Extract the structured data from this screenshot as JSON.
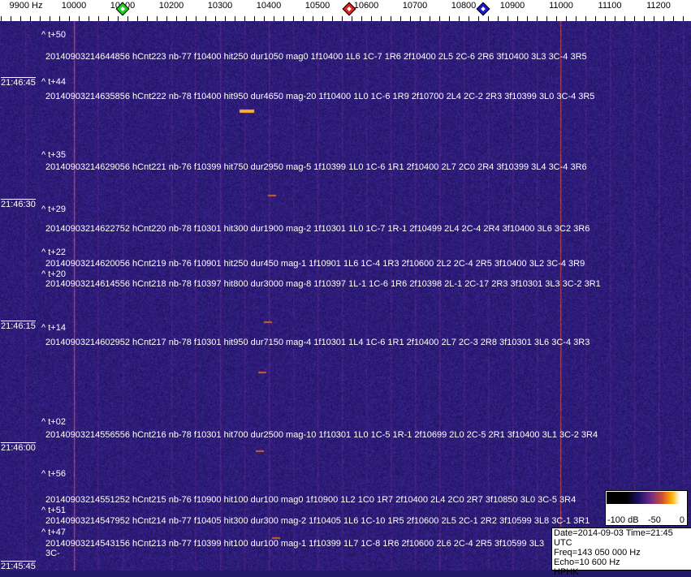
{
  "ruler": {
    "unit_label": "9900 Hz",
    "ticks": [
      "10000",
      "10100",
      "10200",
      "10300",
      "10400",
      "10500",
      "10600",
      "10700",
      "10800",
      "10900",
      "11000",
      "11100",
      "11200"
    ],
    "markers": [
      {
        "name": "green",
        "freq_hz": 10100,
        "color": "#22cc22"
      },
      {
        "name": "red",
        "freq_hz": 10565,
        "color": "#dd2222"
      },
      {
        "name": "blue",
        "freq_hz": 10840,
        "color": "#1a1acc"
      }
    ]
  },
  "waterfall": {
    "background_color": "#24186a",
    "strong_lines_hz": [
      10000,
      11000
    ],
    "time_labels": [
      {
        "text": "21:46:45"
      },
      {
        "text": "21:46:30"
      },
      {
        "text": "21:46:15"
      },
      {
        "text": "21:46:00"
      },
      {
        "text": "21:45:45"
      }
    ],
    "offset_labels": [
      "^ t+50",
      "^ t+44",
      "^ t+35",
      "^ t+29",
      "^ t+22",
      "^ t+20",
      "^ t+14",
      "^ t+02",
      "^ t+56",
      "^ t+51",
      "^ t+47"
    ],
    "detections": [
      "20140903214644856 hCnt223 nb-77 f10400 hit250 dur1050 mag0 1f10400 1L6 1C-7 1R6 2f10400 2L5 2C-6 2R6 3f10400 3L3 3C-4 3R5",
      "20140903214635856 hCnt222 nb-78 f10400 hit950 dur4650 mag-20 1f10400 1L0 1C-6 1R9 2f10700 2L4 2C-2 2R3 3f10399 3L0 3C-4 3R5",
      "20140903214629056 hCnt221 nb-76 f10399 hit750 dur2950 mag-5 1f10399 1L0 1C-6 1R1 2f10400 2L7 2C0 2R4 3f10399 3L4 3C-4 3R6",
      "20140903214622752 hCnt220 nb-78 f10301 hit300 dur1900 mag-2 1f10301 1L0 1C-7 1R-1 2f10499 2L4 2C-4 2R4 3f10400 3L6 3C2 3R6",
      "20140903214620056 hCnt219 nb-76 f10901 hit250 dur450 mag-1 1f10901 1L6 1C-4 1R3 2f10600 2L2 2C-4 2R5 3f10400 3L2 3C-4 3R9",
      "20140903214614556 hCnt218 nb-78 f10397 hit800 dur3000 mag-8 1f10397 1L-1 1C-6 1R6 2f10398 2L-1 2C-17 2R3 3f10301 3L3 3C-2 3R1",
      "20140903214602952 hCnt217 nb-78 f10301 hit950 dur7150 mag-4 1f10301 1L4 1C-6 1R1 2f10400 2L7 2C-3 2R8 3f10301 3L6 3C-4 3R3",
      "20140903214556556 hCnt216 nb-78 f10301 hit700 dur2500 mag-10 1f10301 1L0 1C-5 1R-1 2f10699 2L0 2C-5 2R1 3f10400 3L1 3C-2 3R4",
      "20140903214551252 hCnt215 nb-76 f10900 hit100 dur100 mag0 1f10900 1L2 1C0 1R7 2f10400 2L4 2C0 2R7 3f10850 3L0 3C-5 3R4",
      "20140903214547952 hCnt214 nb-77 f10405 hit300 dur300 mag-2 1f10405 1L6 1C-10 1R5 2f10600 2L5 2C-1 2R2 3f10599 3L8 3C-1 3R1",
      "20140903214543156 hCnt213 nb-77 f10399 hit100 dur100 mag-1 1f10399 1L7 1C-8 1R6 2f10600 2L6 2C-4 2R5 3f10599 3L3 3C-"
    ]
  },
  "legend": {
    "labels": [
      "-100 dB",
      "-50",
      "0"
    ]
  },
  "info": {
    "date_time": "Date=2014-09-03 Time=21:45 UTC",
    "freq": "Freq=143 050 000 Hz",
    "echo": "Echo=10 600 Hz",
    "station": "HPHK"
  }
}
